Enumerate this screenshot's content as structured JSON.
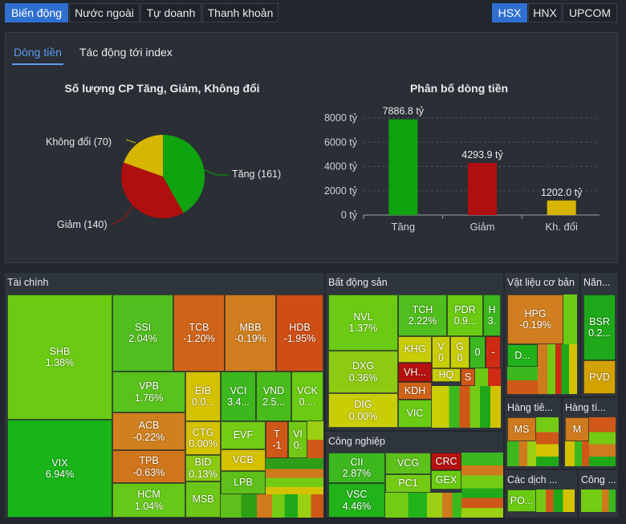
{
  "tabs": [
    "Biến động",
    "Nước ngoài",
    "Tự doanh",
    "Thanh khoản"
  ],
  "exchanges": [
    "HSX",
    "HNX",
    "UPCOM"
  ],
  "subtabs": [
    "Dòng tiền",
    "Tác động tới index"
  ],
  "pie": {
    "title": "Số lượng CP Tăng, Giảm, Không đổi",
    "label_up": "Tăng (161)",
    "label_down": "Giảm (140)",
    "label_flat": "Không đổi (70)",
    "colors": {
      "up": "#0fa30f",
      "down": "#b00f0f",
      "flat": "#d6b500"
    }
  },
  "chart_data": {
    "type": "bar",
    "title": "Phân bố dòng tiền",
    "categories": [
      "Tăng",
      "Giảm",
      "Kh. đổi"
    ],
    "values": [
      7886.8,
      4293.9,
      1202.0
    ],
    "value_labels": [
      "7886.8 tỷ",
      "4293.9 tỷ",
      "1202.0 tỷ"
    ],
    "ytick_labels": [
      "8000 tỷ",
      "6000 tỷ",
      "4000 tỷ",
      "2000 tỷ",
      "0 tỷ"
    ],
    "ylim": [
      0,
      8000
    ],
    "colors": [
      "#0fa30f",
      "#b00f0f",
      "#d6b500"
    ],
    "grid": true
  },
  "treemap": {
    "sectors": {
      "tai_chinh": "Tài chính",
      "bds": "Bất động sản",
      "vlxd": "Vật liệu cơ bản",
      "nang": "Năn...",
      "cn": "Công nghiệp",
      "hang_tieu_1": "Hàng tiê...",
      "hang_tieu_2": "Hàng tí...",
      "cac_dich": "Các dịch ...",
      "cong": "Công ..."
    },
    "tiles": {
      "shb": {
        "s": "SHB",
        "v": "1.38%"
      },
      "vix": {
        "s": "VIX",
        "v": "6.94%"
      },
      "ssi": {
        "s": "SSI",
        "v": "2.04%"
      },
      "tcb": {
        "s": "TCB",
        "v": "-1.20%"
      },
      "mbb": {
        "s": "MBB",
        "v": "-0.19%"
      },
      "hdb": {
        "s": "HDB",
        "v": "-1.95%"
      },
      "vpb": {
        "s": "VPB",
        "v": "1.76%"
      },
      "acb": {
        "s": "ACB",
        "v": "-0.22%"
      },
      "tpb": {
        "s": "TPB",
        "v": "-0.63%"
      },
      "hcm": {
        "s": "HCM",
        "v": "1.04%"
      },
      "eib": {
        "s": "EIB",
        "v": "0.0..."
      },
      "vci": {
        "s": "VCI",
        "v": "3.4..."
      },
      "vnd": {
        "s": "VND",
        "v": "2.5..."
      },
      "vck": {
        "s": "VCK",
        "v": "0...."
      },
      "ctg": {
        "s": "CTG",
        "v": "0.00%"
      },
      "evf": {
        "s": "EVF",
        "v": ""
      },
      "vcb": {
        "s": "VCB",
        "v": ""
      },
      "t": {
        "s": "T",
        "v": "-1"
      },
      "vi": {
        "s": "VI",
        "v": "0."
      },
      "bid": {
        "s": "BID",
        "v": "0.13%"
      },
      "lpb": {
        "s": "LPB",
        "v": ""
      },
      "msb": {
        "s": "MSB",
        "v": ""
      },
      "nvl": {
        "s": "NVL",
        "v": "1.37%"
      },
      "tch": {
        "s": "TCH",
        "v": "2.22%"
      },
      "pdr": {
        "s": "PDR",
        "v": "0.9..."
      },
      "h": {
        "s": "H",
        "v": "3."
      },
      "khg": {
        "s": "KHG",
        "v": ""
      },
      "vsmall": {
        "s": "V",
        "v": "0"
      },
      "gsmall": {
        "s": "G",
        "v": "0"
      },
      "zero": {
        "s": "0",
        "v": ""
      },
      "dash": {
        "s": "-",
        "v": ""
      },
      "dxg": {
        "s": "DXG",
        "v": "0.36%"
      },
      "vh": {
        "s": "VH...",
        "v": ""
      },
      "hq": {
        "s": "HQ",
        "v": ""
      },
      "ssmall": {
        "s": "S",
        "v": ""
      },
      "kdh": {
        "s": "KDH",
        "v": ""
      },
      "dig": {
        "s": "DIG",
        "v": "0.00%"
      },
      "vic": {
        "s": "VIC",
        "v": ""
      },
      "cii": {
        "s": "CII",
        "v": "2.87%"
      },
      "vcg": {
        "s": "VCG",
        "v": ""
      },
      "crc": {
        "s": "CRC",
        "v": ""
      },
      "pc1": {
        "s": "PC1",
        "v": ""
      },
      "gex": {
        "s": "GEX",
        "v": ""
      },
      "vsc": {
        "s": "VSC",
        "v": "4.46%"
      },
      "hpg": {
        "s": "HPG",
        "v": "-0.19%"
      },
      "d": {
        "s": "D...",
        "v": ""
      },
      "bsr": {
        "s": "BSR",
        "v": "0.2..."
      },
      "pvd": {
        "s": "PVD",
        "v": ""
      },
      "ms": {
        "s": "MS",
        "v": ""
      },
      "m": {
        "s": "M",
        "v": ""
      },
      "po": {
        "s": "PO...",
        "v": ""
      }
    }
  }
}
